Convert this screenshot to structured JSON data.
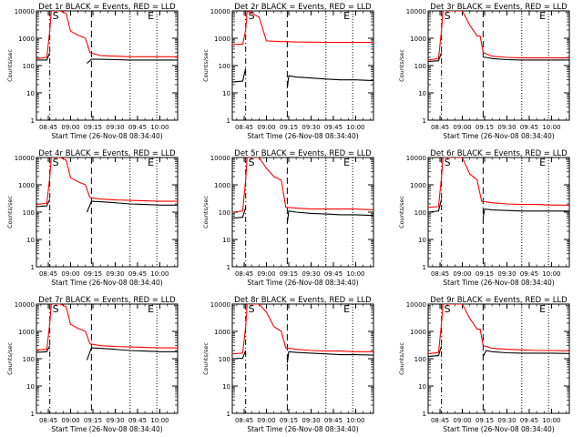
{
  "chart_data": [
    {
      "type": "line",
      "title": "Det 1r BLACK = Events, RED = LLD",
      "xlabel": "Start Time (26-Nov-08 08:34:40)",
      "ylabel": "Counts/sec",
      "yscale": "log",
      "ylim": [
        1,
        10000
      ],
      "xlim": [
        "08:37",
        "10:12"
      ],
      "xtick_labels": [
        "08:45",
        "09:00",
        "09:15",
        "09:30",
        "09:45",
        "10:00"
      ],
      "ytick_labels": [
        "1",
        "10",
        "100",
        "1000",
        "10000"
      ],
      "markers": [
        "S",
        "E"
      ],
      "grid": false,
      "series": [
        {
          "name": "BLACK",
          "color": "#000000",
          "x": [
            "08:37",
            "08:44",
            "08:46",
            "08:47",
            "09:10",
            "09:11",
            "09:14",
            "09:20",
            "09:30",
            "09:40",
            "09:50",
            "10:00",
            "10:12"
          ],
          "y": [
            160,
            160,
            300,
            null,
            null,
            120,
            170,
            170,
            165,
            160,
            160,
            160,
            160
          ]
        },
        {
          "name": "RED",
          "color": "#ff0000",
          "x": [
            "08:37",
            "08:44",
            "08:46",
            "08:47",
            "08:50",
            "08:53",
            "08:57",
            "09:00",
            "09:05",
            "09:10",
            "09:13",
            "09:20",
            "09:30",
            "09:40",
            "09:50",
            "10:00",
            "10:12"
          ],
          "y": [
            180,
            200,
            2000,
            10000,
            10000,
            10000,
            8000,
            1800,
            1300,
            1000,
            300,
            230,
            220,
            210,
            210,
            210,
            210
          ]
        }
      ]
    },
    {
      "type": "line",
      "title": "Det 2r BLACK = Events, RED = LLD",
      "xlabel": "Start Time (26-Nov-08 08:34:40)",
      "ylabel": "Counts/sec",
      "yscale": "log",
      "ylim": [
        1,
        10000
      ],
      "xlim": [
        "08:37",
        "10:12"
      ],
      "xtick_labels": [
        "08:45",
        "09:00",
        "09:15",
        "09:30",
        "09:45",
        "10:00"
      ],
      "ytick_labels": [
        "1",
        "10",
        "100",
        "1000",
        "10000"
      ],
      "markers": [
        "S",
        "E"
      ],
      "grid": false,
      "series": [
        {
          "name": "BLACK",
          "color": "#000000",
          "x": [
            "08:37",
            "08:44",
            "08:46",
            "08:47",
            "09:13",
            "09:14",
            "09:15",
            "09:20",
            "09:30",
            "09:40",
            "09:50",
            "10:00",
            "10:12"
          ],
          "y": [
            25,
            27,
            80,
            null,
            null,
            15,
            42,
            38,
            35,
            32,
            30,
            30,
            28
          ]
        },
        {
          "name": "RED",
          "color": "#ff0000",
          "x": [
            "08:37",
            "08:44",
            "08:46",
            "08:47",
            "08:55",
            "09:00",
            "09:10",
            "09:13",
            "09:20",
            "09:30",
            "09:40",
            "09:50",
            "10:00",
            "10:12"
          ],
          "y": [
            600,
            600,
            2000,
            10000,
            6000,
            800,
            750,
            750,
            730,
            720,
            710,
            700,
            700,
            700
          ]
        }
      ]
    },
    {
      "type": "line",
      "title": "Det 3r BLACK = Events, RED = LLD",
      "xlabel": "Start Time (26-Nov-08 08:34:40)",
      "ylabel": "Counts/sec",
      "yscale": "log",
      "ylim": [
        1,
        10000
      ],
      "xlim": [
        "08:37",
        "10:12"
      ],
      "xtick_labels": [
        "08:45",
        "09:00",
        "09:15",
        "09:30",
        "09:45",
        "10:00"
      ],
      "ytick_labels": [
        "1",
        "10",
        "100",
        "1000",
        "10000"
      ],
      "markers": [
        "S",
        "E"
      ],
      "grid": false,
      "series": [
        {
          "name": "BLACK",
          "color": "#000000",
          "x": [
            "08:37",
            "08:44",
            "08:46",
            "08:47",
            "09:13",
            "09:14",
            "09:16",
            "09:20",
            "09:30",
            "09:40",
            "09:50",
            "10:00",
            "10:12"
          ],
          "y": [
            140,
            150,
            300,
            null,
            null,
            200,
            200,
            180,
            165,
            160,
            160,
            160,
            160
          ]
        },
        {
          "name": "RED",
          "color": "#ff0000",
          "x": [
            "08:37",
            "08:44",
            "08:46",
            "08:47",
            "08:55",
            "09:00",
            "09:05",
            "09:10",
            "09:12",
            "09:14",
            "09:20",
            "09:30",
            "09:40",
            "09:50",
            "10:00",
            "10:12"
          ],
          "y": [
            160,
            180,
            2000,
            10000,
            10000,
            10000,
            3000,
            1200,
            1200,
            300,
            220,
            200,
            190,
            190,
            190,
            190
          ]
        }
      ]
    },
    {
      "type": "line",
      "title": "Det 4r BLACK = Events, RED = LLD",
      "xlabel": "Start Time (26-Nov-08 08:34:40)",
      "ylabel": "Counts/sec",
      "yscale": "log",
      "ylim": [
        1,
        10000
      ],
      "xlim": [
        "08:37",
        "10:12"
      ],
      "xtick_labels": [
        "08:45",
        "09:00",
        "09:15",
        "09:30",
        "09:45",
        "10:00"
      ],
      "ytick_labels": [
        "1",
        "10",
        "100",
        "1000",
        "10000"
      ],
      "markers": [
        "S",
        "E"
      ],
      "grid": false,
      "series": [
        {
          "name": "BLACK",
          "color": "#000000",
          "x": [
            "08:37",
            "08:44",
            "08:46",
            "08:47",
            "09:10",
            "09:11",
            "09:14",
            "09:20",
            "09:30",
            "09:40",
            "09:50",
            "10:00",
            "10:12"
          ],
          "y": [
            160,
            170,
            300,
            null,
            null,
            100,
            250,
            240,
            220,
            200,
            190,
            180,
            180
          ]
        },
        {
          "name": "RED",
          "color": "#ff0000",
          "x": [
            "08:37",
            "08:44",
            "08:46",
            "08:47",
            "08:50",
            "08:53",
            "08:57",
            "09:00",
            "09:05",
            "09:10",
            "09:13",
            "09:20",
            "09:30",
            "09:40",
            "09:50",
            "10:00",
            "10:12"
          ],
          "y": [
            190,
            210,
            2000,
            10000,
            10000,
            10000,
            8000,
            1800,
            1300,
            1000,
            340,
            300,
            280,
            270,
            260,
            250,
            250
          ]
        }
      ]
    },
    {
      "type": "line",
      "title": "Det 5r BLACK = Events, RED = LLD",
      "xlabel": "Start Time (26-Nov-08 08:34:40)",
      "ylabel": "Counts/sec",
      "yscale": "log",
      "ylim": [
        1,
        10000
      ],
      "xlim": [
        "08:37",
        "10:12"
      ],
      "xtick_labels": [
        "08:45",
        "09:00",
        "09:15",
        "09:30",
        "09:45",
        "10:00"
      ],
      "ytick_labels": [
        "1",
        "10",
        "100",
        "1000",
        "10000"
      ],
      "markers": [
        "S",
        "E"
      ],
      "grid": false,
      "series": [
        {
          "name": "BLACK",
          "color": "#000000",
          "x": [
            "08:37",
            "08:44",
            "08:46",
            "08:47",
            "09:13",
            "09:14",
            "09:15",
            "09:20",
            "09:30",
            "09:40",
            "09:50",
            "10:00",
            "10:12"
          ],
          "y": [
            60,
            65,
            150,
            null,
            null,
            40,
            110,
            100,
            90,
            85,
            80,
            80,
            75
          ]
        },
        {
          "name": "RED",
          "color": "#ff0000",
          "x": [
            "08:37",
            "08:44",
            "08:46",
            "08:47",
            "08:55",
            "09:00",
            "09:05",
            "09:10",
            "09:13",
            "09:20",
            "09:30",
            "09:40",
            "09:50",
            "10:00",
            "10:12"
          ],
          "y": [
            100,
            110,
            1500,
            10000,
            10000,
            4000,
            2000,
            1500,
            150,
            140,
            130,
            130,
            130,
            130,
            120
          ]
        }
      ]
    },
    {
      "type": "line",
      "title": "Det 6r BLACK = Events, RED = LLD",
      "xlabel": "Start Time (26-Nov-08 08:34:40)",
      "ylabel": "Counts/sec",
      "yscale": "log",
      "ylim": [
        1,
        10000
      ],
      "xlim": [
        "08:37",
        "10:12"
      ],
      "xtick_labels": [
        "08:45",
        "09:00",
        "09:15",
        "09:30",
        "09:45",
        "10:00"
      ],
      "ytick_labels": [
        "1",
        "10",
        "100",
        "1000",
        "10000"
      ],
      "markers": [
        "S",
        "E"
      ],
      "grid": false,
      "series": [
        {
          "name": "BLACK",
          "color": "#000000",
          "x": [
            "08:37",
            "08:44",
            "08:46",
            "08:47",
            "09:13",
            "09:14",
            "09:15",
            "09:20",
            "09:30",
            "09:40",
            "09:50",
            "10:00",
            "10:12"
          ],
          "y": [
            100,
            110,
            300,
            null,
            null,
            60,
            130,
            120,
            115,
            110,
            110,
            110,
            110
          ]
        },
        {
          "name": "RED",
          "color": "#ff0000",
          "x": [
            "08:37",
            "08:44",
            "08:46",
            "08:47",
            "08:55",
            "09:00",
            "09:05",
            "09:10",
            "09:13",
            "09:20",
            "09:30",
            "09:40",
            "09:50",
            "10:00",
            "10:12"
          ],
          "y": [
            150,
            160,
            2000,
            10000,
            10000,
            10000,
            2500,
            1500,
            250,
            220,
            200,
            190,
            190,
            180,
            180
          ]
        }
      ]
    },
    {
      "type": "line",
      "title": "Det 7r BLACK = Events, RED = LLD",
      "xlabel": "Start Time (26-Nov-08 08:34:40)",
      "ylabel": "Counts/sec",
      "yscale": "log",
      "ylim": [
        1,
        10000
      ],
      "xlim": [
        "08:37",
        "10:12"
      ],
      "xtick_labels": [
        "08:45",
        "09:00",
        "09:15",
        "09:30",
        "09:45",
        "10:00"
      ],
      "ytick_labels": [
        "1",
        "10",
        "100",
        "1000",
        "10000"
      ],
      "markers": [
        "S",
        "E"
      ],
      "grid": false,
      "series": [
        {
          "name": "BLACK",
          "color": "#000000",
          "x": [
            "08:37",
            "08:44",
            "08:46",
            "08:47",
            "09:10",
            "09:11",
            "09:14",
            "09:20",
            "09:30",
            "09:40",
            "09:50",
            "10:00",
            "10:12"
          ],
          "y": [
            170,
            180,
            300,
            null,
            null,
            90,
            250,
            240,
            220,
            200,
            190,
            180,
            180
          ]
        },
        {
          "name": "RED",
          "color": "#ff0000",
          "x": [
            "08:37",
            "08:44",
            "08:46",
            "08:47",
            "08:50",
            "08:53",
            "08:57",
            "09:00",
            "09:05",
            "09:10",
            "09:13",
            "09:20",
            "09:30",
            "09:40",
            "09:50",
            "10:00",
            "10:12"
          ],
          "y": [
            210,
            220,
            2000,
            10000,
            10000,
            10000,
            8000,
            1800,
            1300,
            1000,
            350,
            300,
            280,
            270,
            260,
            250,
            250
          ]
        }
      ]
    },
    {
      "type": "line",
      "title": "Det 8r BLACK = Events, RED = LLD",
      "xlabel": "Start Time (26-Nov-08 08:34:40)",
      "ylabel": "Counts/sec",
      "yscale": "log",
      "ylim": [
        1,
        10000
      ],
      "xlim": [
        "08:37",
        "10:12"
      ],
      "xtick_labels": [
        "08:45",
        "09:00",
        "09:15",
        "09:30",
        "09:45",
        "10:00"
      ],
      "ytick_labels": [
        "1",
        "10",
        "100",
        "1000",
        "10000"
      ],
      "markers": [
        "S",
        "E"
      ],
      "grid": false,
      "series": [
        {
          "name": "BLACK",
          "color": "#000000",
          "x": [
            "08:37",
            "08:44",
            "08:46",
            "08:47",
            "09:13",
            "09:14",
            "09:15",
            "09:20",
            "09:30",
            "09:40",
            "09:50",
            "10:00",
            "10:12"
          ],
          "y": [
            100,
            105,
            200,
            null,
            null,
            70,
            180,
            170,
            160,
            150,
            140,
            140,
            135
          ]
        },
        {
          "name": "RED",
          "color": "#ff0000",
          "x": [
            "08:37",
            "08:44",
            "08:46",
            "08:47",
            "08:55",
            "09:00",
            "09:05",
            "09:10",
            "09:13",
            "09:20",
            "09:30",
            "09:40",
            "09:50",
            "10:00",
            "10:12"
          ],
          "y": [
            150,
            160,
            1500,
            10000,
            10000,
            5000,
            1500,
            1000,
            250,
            220,
            200,
            190,
            190,
            180,
            180
          ]
        }
      ]
    },
    {
      "type": "line",
      "title": "Det 9r BLACK = Events, RED = LLD",
      "xlabel": "Start Time (26-Nov-08 08:34:40)",
      "ylabel": "Counts/sec",
      "yscale": "log",
      "ylim": [
        1,
        10000
      ],
      "xlim": [
        "08:37",
        "10:12"
      ],
      "xtick_labels": [
        "08:45",
        "09:00",
        "09:15",
        "09:30",
        "09:45",
        "10:00"
      ],
      "ytick_labels": [
        "1",
        "10",
        "100",
        "1000",
        "10000"
      ],
      "markers": [
        "S",
        "E"
      ],
      "grid": false,
      "series": [
        {
          "name": "BLACK",
          "color": "#000000",
          "x": [
            "08:37",
            "08:44",
            "08:46",
            "08:47",
            "09:13",
            "09:14",
            "09:16",
            "09:20",
            "09:30",
            "09:40",
            "09:50",
            "10:00",
            "10:12"
          ],
          "y": [
            120,
            130,
            300,
            null,
            null,
            120,
            200,
            180,
            165,
            160,
            160,
            160,
            155
          ]
        },
        {
          "name": "RED",
          "color": "#ff0000",
          "x": [
            "08:37",
            "08:44",
            "08:46",
            "08:47",
            "08:55",
            "09:00",
            "09:05",
            "09:10",
            "09:12",
            "09:14",
            "09:20",
            "09:30",
            "09:40",
            "09:50",
            "10:00",
            "10:12"
          ],
          "y": [
            150,
            170,
            2000,
            10000,
            10000,
            10000,
            3000,
            1200,
            1200,
            300,
            240,
            220,
            210,
            200,
            200,
            195
          ]
        }
      ]
    }
  ]
}
